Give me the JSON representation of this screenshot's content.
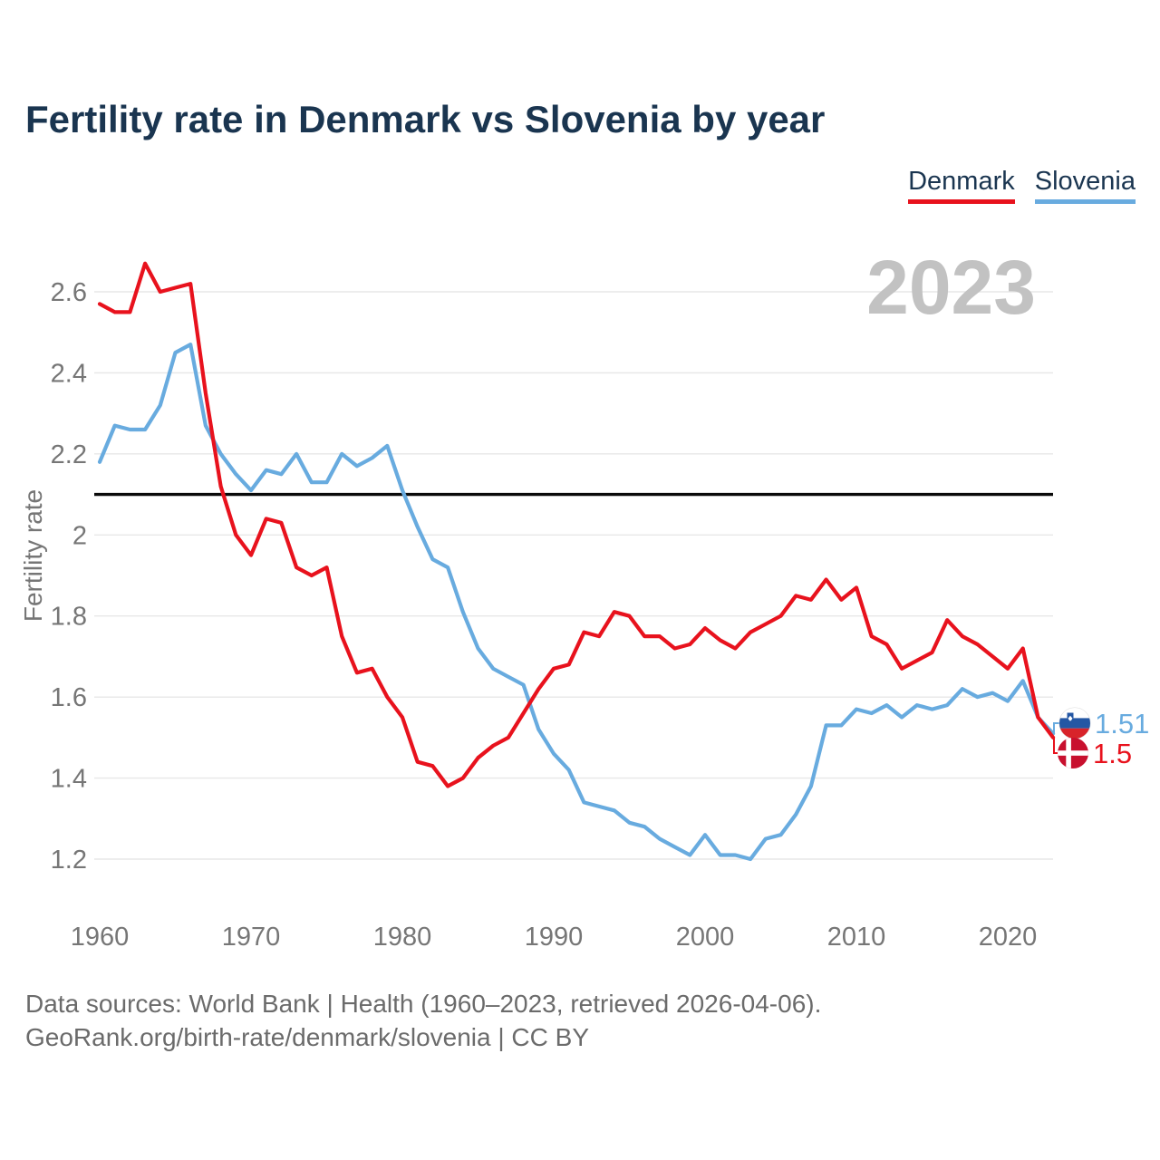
{
  "title": "Fertility rate in Denmark vs Slovenia by year",
  "legend": {
    "denmark": "Denmark",
    "slovenia": "Slovenia"
  },
  "watermark_year": "2023",
  "colors": {
    "denmark": "#e8121d",
    "slovenia": "#68abdf",
    "title_text": "#1a3550",
    "axis_text": "#767676",
    "grid": "#e7e7e7",
    "replacement_line": "#0a0a0a",
    "watermark": "#c2c2c2",
    "footer_text": "#6b6b6b",
    "denmark_flag_red": "#c8102e",
    "slovenia_flag_blue": "#2457a4",
    "slovenia_flag_red": "#d8232a"
  },
  "icons": {
    "slovenia_flag": "slovenia-flag-icon",
    "denmark_flag": "denmark-flag-icon"
  },
  "end_labels": {
    "slovenia": {
      "value": "1.51"
    },
    "denmark": {
      "value": "1.5"
    }
  },
  "footer": {
    "line1": "Data sources: World Bank | Health (1960–2023, retrieved 2026-04-06).",
    "line2": "GeoRank.org/birth-rate/denmark/slovenia | CC BY"
  },
  "chart_data": {
    "type": "line",
    "title": "Fertility rate in Denmark vs Slovenia by year",
    "xlabel": "",
    "ylabel": "Fertility rate",
    "grid": true,
    "legend_position": "top-right",
    "xlim": [
      1960,
      2023
    ],
    "ylim": [
      1.13,
      2.72
    ],
    "x_ticks": [
      1960,
      1970,
      1980,
      1990,
      2000,
      2010,
      2020
    ],
    "y_ticks": [
      1.2,
      1.4,
      1.6,
      1.8,
      2,
      2.2,
      2.4,
      2.6
    ],
    "reference_line": {
      "value": 2.1,
      "label": ""
    },
    "x": [
      1960,
      1961,
      1962,
      1963,
      1964,
      1965,
      1966,
      1967,
      1968,
      1969,
      1970,
      1971,
      1972,
      1973,
      1974,
      1975,
      1976,
      1977,
      1978,
      1979,
      1980,
      1981,
      1982,
      1983,
      1984,
      1985,
      1986,
      1987,
      1988,
      1989,
      1990,
      1991,
      1992,
      1993,
      1994,
      1995,
      1996,
      1997,
      1998,
      1999,
      2000,
      2001,
      2002,
      2003,
      2004,
      2005,
      2006,
      2007,
      2008,
      2009,
      2010,
      2011,
      2012,
      2013,
      2014,
      2015,
      2016,
      2017,
      2018,
      2019,
      2020,
      2021,
      2022,
      2023
    ],
    "series": [
      {
        "name": "Slovenia",
        "color": "#68abdf",
        "final_value": 1.51,
        "values": [
          2.18,
          2.27,
          2.26,
          2.26,
          2.32,
          2.45,
          2.47,
          2.27,
          2.2,
          2.15,
          2.11,
          2.16,
          2.15,
          2.2,
          2.13,
          2.13,
          2.2,
          2.17,
          2.19,
          2.22,
          2.11,
          2.02,
          1.94,
          1.92,
          1.81,
          1.72,
          1.67,
          1.65,
          1.63,
          1.52,
          1.46,
          1.42,
          1.34,
          1.33,
          1.32,
          1.29,
          1.28,
          1.25,
          1.23,
          1.21,
          1.26,
          1.21,
          1.21,
          1.2,
          1.25,
          1.26,
          1.31,
          1.38,
          1.53,
          1.53,
          1.57,
          1.56,
          1.58,
          1.55,
          1.58,
          1.57,
          1.58,
          1.62,
          1.6,
          1.61,
          1.59,
          1.64,
          1.55,
          1.51
        ]
      },
      {
        "name": "Denmark",
        "color": "#e8121d",
        "final_value": 1.5,
        "values": [
          2.57,
          2.55,
          2.55,
          2.67,
          2.6,
          2.61,
          2.62,
          2.35,
          2.12,
          2.0,
          1.95,
          2.04,
          2.03,
          1.92,
          1.9,
          1.92,
          1.75,
          1.66,
          1.67,
          1.6,
          1.55,
          1.44,
          1.43,
          1.38,
          1.4,
          1.45,
          1.48,
          1.5,
          1.56,
          1.62,
          1.67,
          1.68,
          1.76,
          1.75,
          1.81,
          1.8,
          1.75,
          1.75,
          1.72,
          1.73,
          1.77,
          1.74,
          1.72,
          1.76,
          1.78,
          1.8,
          1.85,
          1.84,
          1.89,
          1.84,
          1.87,
          1.75,
          1.73,
          1.67,
          1.69,
          1.71,
          1.79,
          1.75,
          1.73,
          1.7,
          1.67,
          1.72,
          1.55,
          1.5
        ]
      }
    ]
  }
}
